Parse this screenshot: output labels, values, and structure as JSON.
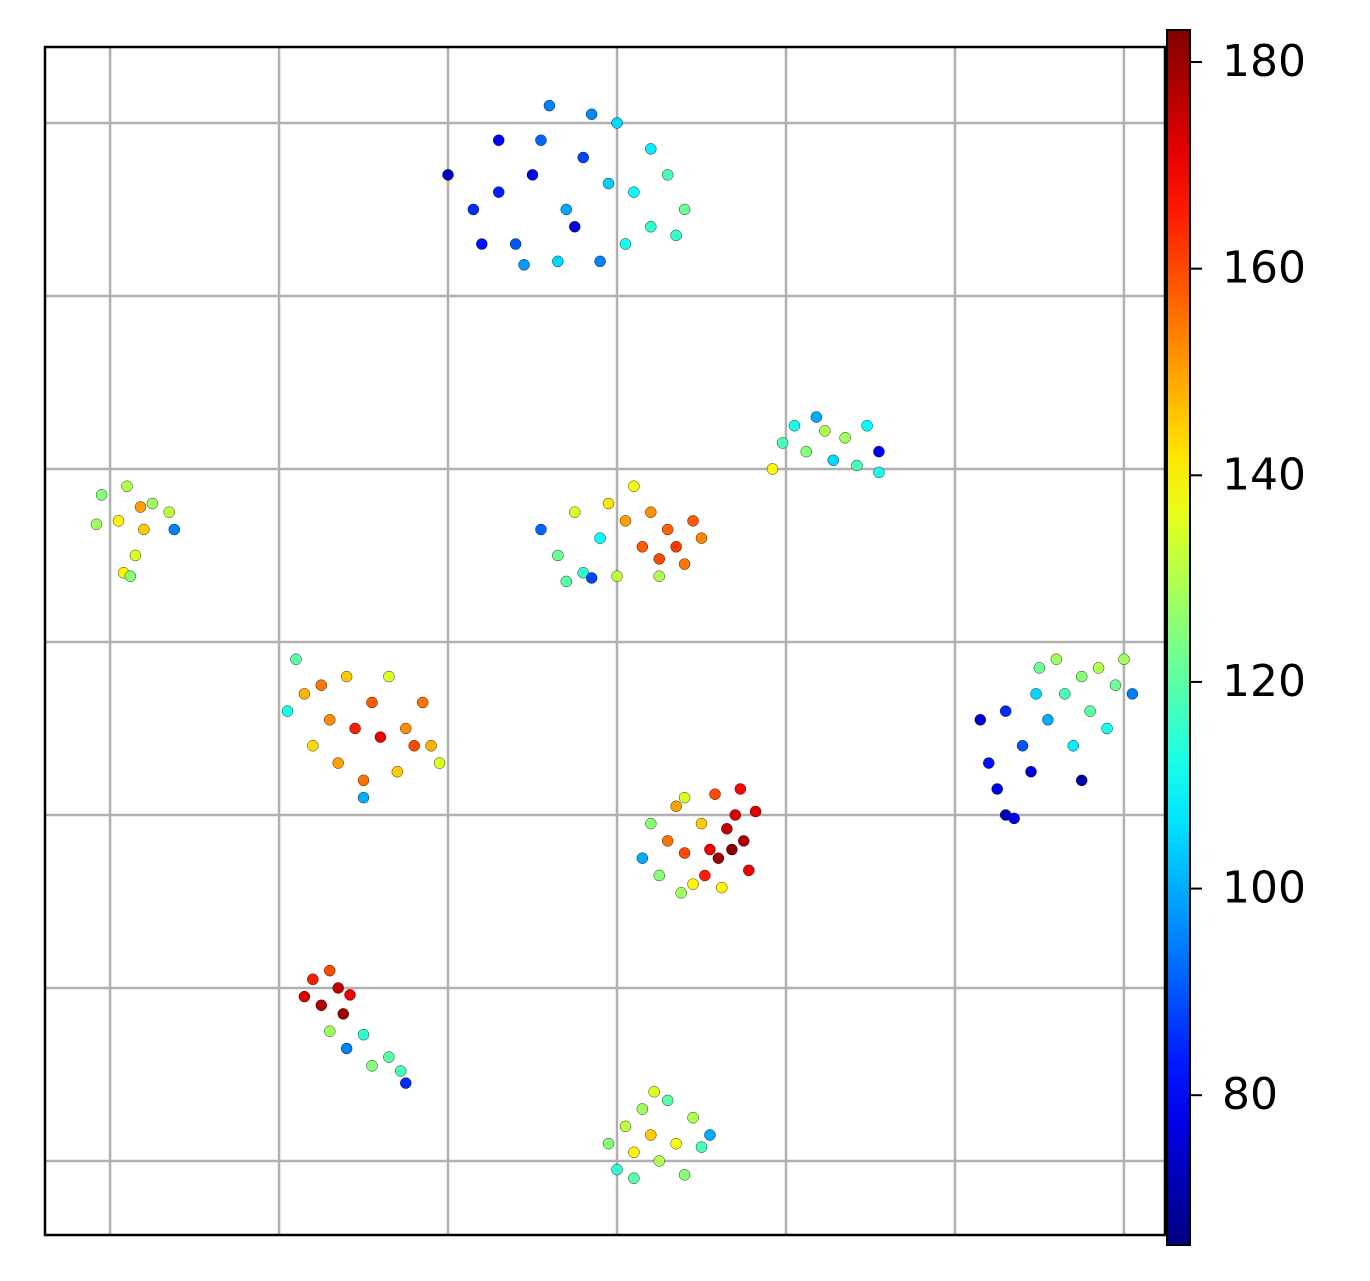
{
  "chart_data": {
    "type": "scatter",
    "colormap": "jet",
    "grid": true,
    "xlim": [
      -3.85,
      62.43
    ],
    "ylim": [
      -4.28,
      64.39
    ],
    "xticks": [
      0,
      10,
      20,
      30,
      40,
      50,
      60
    ],
    "yticks": [
      0,
      10,
      20,
      30,
      40,
      50,
      60
    ],
    "colorbar_lim": [
      65.5,
      183.1
    ],
    "colorbar_ticks": [
      80,
      100,
      120,
      140,
      160,
      180
    ],
    "x": [
      20,
      21.5,
      23,
      24,
      25,
      26,
      27,
      28,
      29,
      30,
      31,
      32,
      33,
      34,
      22,
      24.5,
      26.5,
      28.5,
      30.5,
      32,
      27.5,
      25.5,
      29.5,
      33.5,
      23,
      -0.5,
      0.5,
      1,
      2,
      1.5,
      2.5,
      3.5,
      0.8,
      1.2,
      3.8,
      -0.8,
      1.8,
      25.5,
      26.5,
      27.5,
      27,
      28,
      29,
      29.5,
      30,
      30.5,
      31,
      31.5,
      32,
      32.5,
      33,
      33.5,
      34,
      34.5,
      35,
      32.5,
      28.5,
      39.2,
      39.8,
      40.5,
      41.2,
      41.8,
      42.3,
      42.8,
      43.5,
      44.2,
      44.8,
      45.5,
      45.5,
      10.5,
      11,
      11.5,
      12,
      12.5,
      13,
      13.5,
      14,
      14.5,
      15,
      15.5,
      16,
      16.5,
      17,
      17.5,
      18,
      18.5,
      19,
      19.5,
      15,
      51.5,
      52,
      52.5,
      53,
      53,
      53.5,
      54,
      54.5,
      54.8,
      55,
      55.5,
      56,
      56.5,
      57,
      57.5,
      58,
      58.5,
      59,
      59.5,
      60,
      60.5,
      57.5,
      31.5,
      32,
      32.5,
      33,
      33.5,
      34,
      34.5,
      35,
      35.5,
      35.8,
      36,
      36.5,
      36.8,
      37,
      37.5,
      37.8,
      38.2,
      36.2,
      33.8,
      35.2,
      34,
      37.3,
      11.5,
      12,
      12.5,
      13,
      13.5,
      13.8,
      14.2,
      13,
      14,
      15,
      15.5,
      16.5,
      17.2,
      17.5,
      29.5,
      30,
      30.5,
      31,
      31.5,
      32,
      32.5,
      33,
      33.5,
      34,
      34.5,
      35,
      35.5,
      32.2,
      31
    ],
    "y": [
      57,
      55,
      59,
      53,
      57,
      61,
      55,
      58,
      52,
      60,
      56,
      54,
      57,
      55,
      53,
      51.8,
      52,
      60.5,
      53,
      58.5,
      54,
      59,
      56.5,
      53.5,
      56,
      38.5,
      37,
      39,
      36.5,
      35,
      38,
      37.5,
      34,
      33.8,
      36.5,
      36.8,
      37.8,
      36.5,
      35,
      37.5,
      33.5,
      34,
      36,
      38,
      33.8,
      37,
      39,
      35.5,
      37.5,
      34.8,
      36.5,
      35.5,
      34.5,
      37,
      36,
      33.8,
      33.7,
      40,
      41.5,
      42.5,
      41,
      43,
      42.2,
      40.5,
      41.8,
      40.2,
      42.5,
      41,
      39.8,
      26,
      29,
      27,
      24,
      27.5,
      25.5,
      23,
      28,
      25,
      22,
      26.5,
      24.5,
      28,
      22.5,
      25,
      24,
      26.5,
      24,
      23,
      21,
      25.5,
      23,
      21.5,
      26,
      20,
      19.8,
      24,
      22.5,
      27,
      28.5,
      25.5,
      29,
      27,
      24,
      28,
      26,
      28.5,
      25,
      27.5,
      29,
      27,
      22,
      17.5,
      19.5,
      16.5,
      18.5,
      20.5,
      17.8,
      16,
      19.5,
      18,
      21.2,
      17.5,
      19.2,
      18,
      20,
      18.5,
      16.8,
      20.2,
      15.8,
      15.5,
      16.5,
      21,
      21.5,
      9.5,
      10.5,
      9,
      11,
      10,
      8.5,
      9.6,
      7.5,
      6.5,
      7.3,
      5.5,
      6,
      5.2,
      4.5,
      1,
      -0.5,
      2,
      0.5,
      3,
      1.5,
      0,
      3.5,
      1,
      -0.8,
      2.5,
      0.8,
      1.5,
      4,
      -1
    ],
    "values": [
      72,
      85,
      80,
      90,
      78,
      95,
      100,
      88,
      95,
      105,
      110,
      115,
      118,
      122,
      82,
      98,
      105,
      96,
      112,
      108,
      76,
      92,
      104,
      116,
      84,
      125,
      140,
      130,
      145,
      135,
      128,
      132,
      140,
      125,
      95,
      128,
      150,
      92,
      122,
      135,
      120,
      115,
      110,
      142,
      132,
      150,
      138,
      158,
      152,
      160,
      157,
      162,
      155,
      158,
      153,
      130,
      88,
      140,
      118,
      112,
      125,
      100,
      130,
      105,
      128,
      118,
      110,
      80,
      112,
      112,
      120,
      148,
      143,
      155,
      152,
      150,
      145,
      165,
      155,
      158,
      170,
      135,
      145,
      152,
      160,
      155,
      148,
      135,
      100,
      75,
      82,
      78,
      85,
      72,
      80,
      90,
      76,
      105,
      122,
      100,
      128,
      118,
      108,
      125,
      120,
      130,
      112,
      122,
      128,
      95,
      70,
      100,
      125,
      125,
      155,
      150,
      160,
      140,
      145,
      170,
      160,
      180,
      175,
      182,
      172,
      178,
      170,
      172,
      140,
      128,
      165,
      135,
      168,
      172,
      165,
      178,
      160,
      175,
      180,
      170,
      128,
      95,
      115,
      125,
      120,
      118,
      85,
      125,
      115,
      132,
      140,
      128,
      145,
      130,
      120,
      138,
      125,
      130,
      118,
      100,
      135,
      120
    ]
  }
}
